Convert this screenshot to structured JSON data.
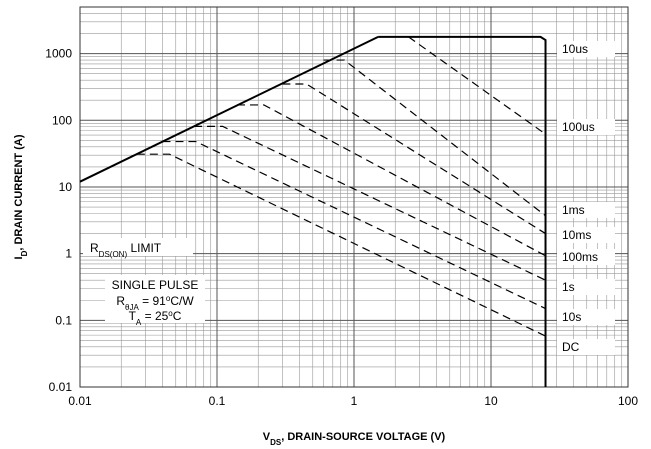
{
  "chart_data": {
    "type": "line",
    "xlog": true,
    "ylog": true,
    "grid": true,
    "xlim": [
      0.01,
      100
    ],
    "ylim": [
      0.01,
      5000
    ],
    "xticks": [
      0.01,
      0.1,
      1,
      10,
      100
    ],
    "yticks": [
      0.01,
      0.1,
      1,
      10,
      100,
      1000
    ],
    "xlabel": [
      "V",
      "DS",
      ", DRAIN-SOURCE VOLTAGE (V)"
    ],
    "ylabel": [
      "I",
      "D",
      ", DRAIN CURRENT (A)"
    ],
    "series": [
      {
        "color": "#000",
        "dash": false,
        "x": [
          0.01,
          1.5
        ],
        "values": [
          12,
          1780
        ]
      },
      {
        "color": "#000",
        "dash": false,
        "x": [
          1.5,
          23,
          25,
          25
        ],
        "values": [
          1780,
          1780,
          1600,
          0.01
        ]
      },
      {
        "color": "#000",
        "dash": true,
        "x": [
          2.5,
          25
        ],
        "values": [
          1780,
          62
        ]
      },
      {
        "color": "#000",
        "dash": true,
        "x": [
          0.6,
          0.85,
          25
        ],
        "values": [
          800,
          800,
          3.7
        ]
      },
      {
        "color": "#000",
        "dash": true,
        "x": [
          0.3,
          0.45,
          25
        ],
        "values": [
          350,
          350,
          2
        ]
      },
      {
        "color": "#000",
        "dash": true,
        "x": [
          0.14,
          0.22,
          25
        ],
        "values": [
          170,
          170,
          0.93
        ]
      },
      {
        "color": "#000",
        "dash": true,
        "x": [
          0.068,
          0.11,
          25
        ],
        "values": [
          81,
          81,
          0.4
        ]
      },
      {
        "color": "#000",
        "dash": true,
        "x": [
          0.04,
          0.07,
          25
        ],
        "values": [
          48,
          48,
          0.15
        ]
      },
      {
        "color": "#000",
        "dash": true,
        "x": [
          0.026,
          0.045,
          25
        ],
        "values": [
          31,
          31,
          0.058
        ]
      }
    ],
    "curve_labels": [
      "10us",
      "100us",
      "1ms",
      "10ms",
      "100ms",
      "1s",
      "10s",
      "DC"
    ],
    "rds_label": [
      "R",
      "DS(ON)",
      " LIMIT"
    ],
    "pulse_label": "SINGLE PULSE",
    "rtheta_label": [
      "R",
      "θJA",
      " = 91",
      "o",
      "C/W"
    ],
    "ta_label": [
      "T",
      "A",
      " = 25",
      "o",
      "C"
    ]
  }
}
